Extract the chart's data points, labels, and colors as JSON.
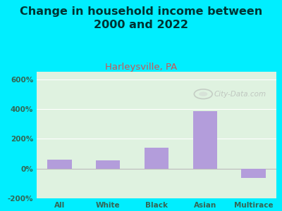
{
  "title": "Change in household income between\n2000 and 2022",
  "subtitle": "Harleysville, PA",
  "categories": [
    "All",
    "White",
    "Black",
    "Asian",
    "Multirace"
  ],
  "values": [
    60,
    55,
    140,
    385,
    -65
  ],
  "bar_color": "#b39ddb",
  "background_outer": "#00eeff",
  "background_plot": "#dff2e0",
  "title_fontsize": 11.5,
  "title_color": "#003333",
  "subtitle_fontsize": 9.5,
  "subtitle_color": "#cc5555",
  "tick_label_color": "#336655",
  "ylim": [
    -200,
    650
  ],
  "yticks": [
    -200,
    0,
    200,
    400,
    600
  ],
  "ytick_labels": [
    "-200%",
    "0%",
    "200%",
    "400%",
    "600%"
  ],
  "watermark": "City-Data.com"
}
